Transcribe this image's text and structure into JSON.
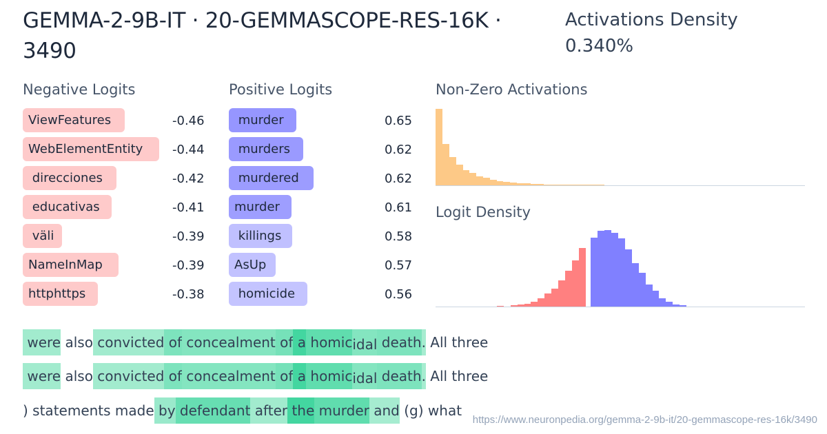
{
  "header": {
    "title": "GEMMA-2-9B-IT · 20-GEMMASCOPE-RES-16K · 3490",
    "density_label": "Activations Density",
    "density_value": "0.340%"
  },
  "negative_logits": {
    "heading": "Negative Logits",
    "color": "#fecaca",
    "items": [
      {
        "token": "ViewFeatures",
        "value": "-0.46",
        "width": 148
      },
      {
        "token": "WebElementEntity",
        "value": "-0.44",
        "width": 198
      },
      {
        "token": " direcciones",
        "value": "-0.42",
        "width": 136
      },
      {
        "token": " educativas",
        "value": "-0.41",
        "width": 129
      },
      {
        "token": " väli",
        "value": "-0.39",
        "width": 57
      },
      {
        "token": "NameInMap",
        "value": "-0.39",
        "width": 139
      },
      {
        "token": "httphttps",
        "value": "-0.38",
        "width": 109
      }
    ]
  },
  "positive_logits": {
    "heading": "Positive Logits",
    "items": [
      {
        "token": " murder",
        "value": "0.65",
        "width": 98,
        "color": "#9696ff"
      },
      {
        "token": " murders",
        "value": "0.62",
        "width": 108,
        "color": "#9a9aff"
      },
      {
        "token": " murdered",
        "value": "0.62",
        "width": 123,
        "color": "#9c9cff"
      },
      {
        "token": "murder",
        "value": "0.61",
        "width": 91,
        "color": "#9e9eff"
      },
      {
        "token": " killings",
        "value": "0.58",
        "width": 92,
        "color": "#c0c0ff"
      },
      {
        "token": "AsUp",
        "value": "0.57",
        "width": 68,
        "color": "#c2c2ff"
      },
      {
        "token": " homicide",
        "value": "0.56",
        "width": 114,
        "color": "#c4c4ff"
      }
    ]
  },
  "chart_data": [
    {
      "type": "bar",
      "title": "Non-Zero Activations",
      "color": "#fdc987",
      "values": [
        100,
        54,
        37,
        27,
        20,
        16,
        12,
        9.5,
        7.5,
        5.5,
        4.5,
        3.5,
        2.8,
        2.8,
        1.8,
        1.8,
        1.2,
        1.2,
        0.6,
        0.6,
        0.6,
        0.6,
        0.6,
        0.6,
        0.6
      ],
      "xlabel": "",
      "ylabel": "",
      "grid": false
    },
    {
      "type": "bar",
      "title": "Logit Density",
      "negative_color": "#ff8080",
      "positive_color": "#8080ff",
      "negative_values": [
        0.3,
        0.6,
        0,
        1.5,
        2.5,
        3.5,
        6.5,
        10.5,
        17,
        23,
        34,
        47,
        60,
        77
      ],
      "positive_values": [
        90,
        99,
        100,
        96,
        89,
        75,
        57,
        44,
        29,
        21,
        11,
        6,
        3,
        1.5
      ],
      "xlabel": "",
      "ylabel": "",
      "grid": false
    }
  ],
  "examples": [
    {
      "tokens": [
        {
          "t": " were",
          "a": 0.25
        },
        {
          "t": " also",
          "a": 0
        },
        {
          "t": " convicted",
          "a": 0.25
        },
        {
          "t": " of",
          "a": 0.5
        },
        {
          "t": " concealment",
          "a": 0.45
        },
        {
          "t": " of",
          "a": 0.55
        },
        {
          "t": " a",
          "a": 0.9
        },
        {
          "t": " homic",
          "a": 0.7
        },
        {
          "t": "idal",
          "a": 0.45,
          "sub": true
        },
        {
          "t": " death",
          "a": 0.5
        },
        {
          "t": ".",
          "a": 0.22
        },
        {
          "t": " All",
          "a": 0
        },
        {
          "t": " three",
          "a": 0
        }
      ]
    },
    {
      "tokens": [
        {
          "t": " were",
          "a": 0.25
        },
        {
          "t": " also",
          "a": 0
        },
        {
          "t": " convicted",
          "a": 0.25
        },
        {
          "t": " of",
          "a": 0.5
        },
        {
          "t": " concealment",
          "a": 0.45
        },
        {
          "t": " of",
          "a": 0.55
        },
        {
          "t": " a",
          "a": 0.9
        },
        {
          "t": " homic",
          "a": 0.7
        },
        {
          "t": "idal",
          "a": 0.45,
          "sub": true
        },
        {
          "t": " death",
          "a": 0.5
        },
        {
          "t": ".",
          "a": 0.22
        },
        {
          "t": " All",
          "a": 0
        },
        {
          "t": " three",
          "a": 0
        }
      ]
    },
    {
      "tokens": [
        {
          "t": ")",
          "a": 0
        },
        {
          "t": " statements",
          "a": 0
        },
        {
          "t": " made",
          "a": 0
        },
        {
          "t": " by",
          "a": 0.3
        },
        {
          "t": " defendant",
          "a": 0.65
        },
        {
          "t": " after",
          "a": 0.25
        },
        {
          "t": " the",
          "a": 0.9
        },
        {
          "t": " murder",
          "a": 0.7
        },
        {
          "t": " and",
          "a": 0.22
        },
        {
          "t": " (",
          "a": 0
        },
        {
          "t": "g",
          "a": 0
        },
        {
          "t": ")",
          "a": 0
        },
        {
          "t": " what",
          "a": 0
        }
      ]
    }
  ],
  "footer": {
    "url": "https://www.neuronpedia.org/gemma-2-9b-it/20-gemmascope-res-16k/3490"
  }
}
